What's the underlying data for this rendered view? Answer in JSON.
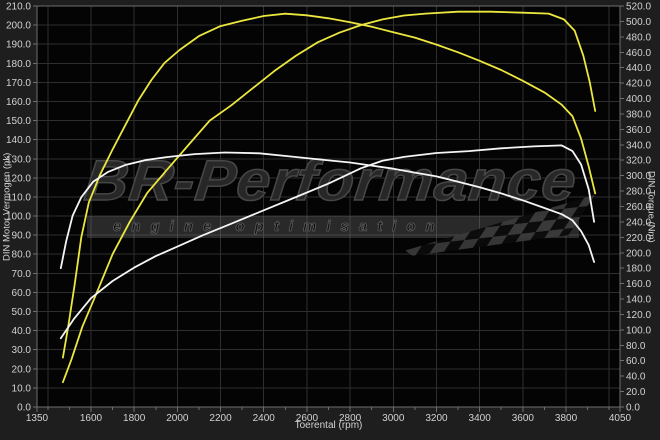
{
  "watermark": {
    "title": "BR-Performance",
    "subtitle": "engine optimisation"
  },
  "colors": {
    "outer_bg": "#1e1e1e",
    "plot_bg": "#040404",
    "grid": "#2e2e2e",
    "axis_border": "#6e6e6e",
    "tick_text": "#d2d2d2",
    "curve_tuned_yellow": "#ece73f",
    "curve_stock_white": "#f5f5f5",
    "watermark_gray": "#474747"
  },
  "chart_data": {
    "type": "line",
    "title": "",
    "xlabel": "Toerental (rpm)",
    "ylabel_left": "DIN Motor Vermogen (pk)",
    "ylabel_right": "DIN Torque (Nm)",
    "x_range": [
      1350,
      4050
    ],
    "y_left_range": [
      0,
      210
    ],
    "y_right_range": [
      0,
      520
    ],
    "y_left_tick_step": 10,
    "y_right_tick_step": 20,
    "x_tick_labels": [
      1350,
      1600,
      1800,
      2000,
      2200,
      2400,
      2600,
      2800,
      3000,
      3200,
      3400,
      3600,
      3800,
      4050
    ],
    "x_grid_start": 1400,
    "x_grid_step": 200,
    "x_grid_end": 4000,
    "x_minor_tick_step": 100,
    "grid": true,
    "legend_position": "none",
    "series": [
      {
        "name": "tuned-power",
        "axis": "left",
        "unit": "pk",
        "color": "#ece73f",
        "peak": {
          "rpm": 3400,
          "value": 207
        },
        "points": [
          [
            1470,
            13
          ],
          [
            1510,
            25
          ],
          [
            1560,
            42
          ],
          [
            1620,
            58
          ],
          [
            1700,
            80
          ],
          [
            1780,
            97
          ],
          [
            1860,
            112
          ],
          [
            1950,
            124
          ],
          [
            2050,
            137
          ],
          [
            2150,
            150
          ],
          [
            2250,
            158
          ],
          [
            2350,
            167
          ],
          [
            2450,
            176
          ],
          [
            2550,
            184
          ],
          [
            2650,
            191
          ],
          [
            2750,
            196
          ],
          [
            2850,
            200
          ],
          [
            2950,
            203
          ],
          [
            3050,
            205
          ],
          [
            3150,
            206
          ],
          [
            3300,
            207
          ],
          [
            3450,
            207
          ],
          [
            3600,
            206.5
          ],
          [
            3720,
            206
          ],
          [
            3790,
            203
          ],
          [
            3840,
            197
          ],
          [
            3880,
            184
          ],
          [
            3910,
            170
          ],
          [
            3935,
            155
          ]
        ]
      },
      {
        "name": "tuned-torque",
        "axis": "right",
        "unit": "Nm",
        "color": "#ece73f",
        "peak": {
          "rpm": 2500,
          "value": 510
        },
        "points": [
          [
            1470,
            64
          ],
          [
            1495,
            105
          ],
          [
            1525,
            160
          ],
          [
            1555,
            220
          ],
          [
            1590,
            265
          ],
          [
            1640,
            300
          ],
          [
            1700,
            334
          ],
          [
            1760,
            366
          ],
          [
            1820,
            398
          ],
          [
            1880,
            424
          ],
          [
            1940,
            446
          ],
          [
            2010,
            463
          ],
          [
            2100,
            481
          ],
          [
            2200,
            494
          ],
          [
            2300,
            501
          ],
          [
            2400,
            507
          ],
          [
            2500,
            510
          ],
          [
            2600,
            508
          ],
          [
            2700,
            504
          ],
          [
            2800,
            499
          ],
          [
            2900,
            493
          ],
          [
            3000,
            486
          ],
          [
            3100,
            479
          ],
          [
            3200,
            470
          ],
          [
            3300,
            460
          ],
          [
            3400,
            449
          ],
          [
            3500,
            437
          ],
          [
            3600,
            423
          ],
          [
            3700,
            408
          ],
          [
            3780,
            392
          ],
          [
            3830,
            377
          ],
          [
            3870,
            348
          ],
          [
            3905,
            312
          ],
          [
            3935,
            277
          ]
        ]
      },
      {
        "name": "stock-power",
        "axis": "left",
        "unit": "pk",
        "color": "#f5f5f5",
        "peak": {
          "rpm": 3750,
          "value": 137
        },
        "points": [
          [
            1460,
            36
          ],
          [
            1520,
            46
          ],
          [
            1600,
            57
          ],
          [
            1700,
            66
          ],
          [
            1800,
            73
          ],
          [
            1900,
            79
          ],
          [
            2000,
            84
          ],
          [
            2120,
            90
          ],
          [
            2250,
            96
          ],
          [
            2400,
            103
          ],
          [
            2550,
            110
          ],
          [
            2700,
            117
          ],
          [
            2850,
            125
          ],
          [
            2950,
            129
          ],
          [
            3050,
            131
          ],
          [
            3200,
            133
          ],
          [
            3350,
            134
          ],
          [
            3500,
            135.5
          ],
          [
            3650,
            136.5
          ],
          [
            3780,
            137
          ],
          [
            3830,
            134
          ],
          [
            3870,
            127
          ],
          [
            3905,
            114
          ],
          [
            3930,
            97
          ]
        ]
      },
      {
        "name": "stock-torque",
        "axis": "right",
        "unit": "Nm",
        "color": "#f5f5f5",
        "peak": {
          "rpm": 2300,
          "value": 330
        },
        "points": [
          [
            1460,
            180
          ],
          [
            1485,
            215
          ],
          [
            1515,
            248
          ],
          [
            1555,
            272
          ],
          [
            1610,
            292
          ],
          [
            1680,
            305
          ],
          [
            1760,
            314
          ],
          [
            1850,
            320
          ],
          [
            1950,
            324
          ],
          [
            2080,
            328
          ],
          [
            2220,
            330
          ],
          [
            2380,
            329
          ],
          [
            2520,
            325
          ],
          [
            2660,
            321
          ],
          [
            2800,
            317
          ],
          [
            2900,
            313
          ],
          [
            3000,
            309
          ],
          [
            3100,
            304
          ],
          [
            3200,
            299
          ],
          [
            3300,
            292
          ],
          [
            3400,
            285
          ],
          [
            3500,
            277
          ],
          [
            3600,
            268
          ],
          [
            3700,
            258
          ],
          [
            3780,
            250
          ],
          [
            3830,
            242
          ],
          [
            3870,
            228
          ],
          [
            3905,
            210
          ],
          [
            3930,
            188
          ]
        ]
      }
    ]
  }
}
